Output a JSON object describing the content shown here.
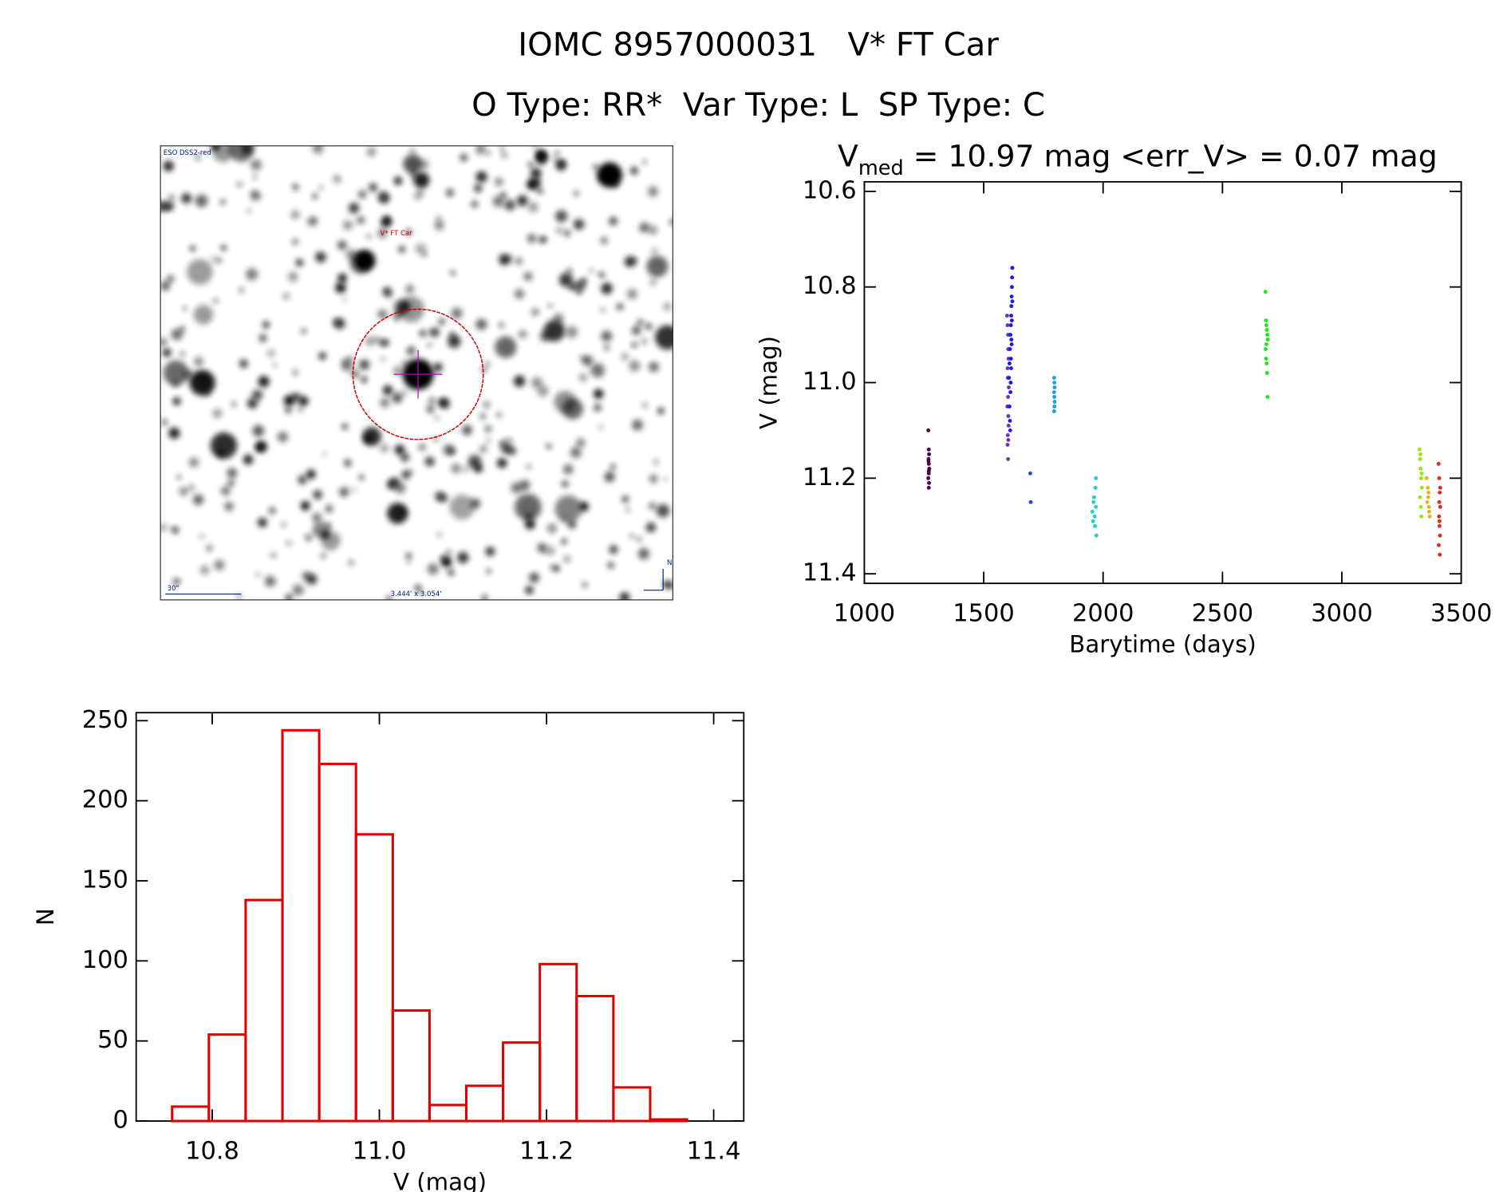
{
  "header": {
    "title": "IOMC 8957000031   V* FT Car",
    "subtitle": "O Type: RR*  Var Type: L  SP Type: C"
  },
  "image": {
    "source": "ESO DSS2-red",
    "target": "V* FT Car",
    "scale": "30\"",
    "fov": "3.444' x 3.054'",
    "north": "N"
  },
  "chart_data": [
    {
      "type": "scatter",
      "title": {
        "text": "V",
        "subscript": "med",
        "rest": " = 10.97 mag <err_V> = 0.07 mag"
      },
      "x_label": "Barytime (days)",
      "y_label": "V (mag)",
      "xlim": [
        1000,
        3500
      ],
      "xticks": [
        1000,
        1500,
        2000,
        2500,
        3000,
        3500
      ],
      "ylim": [
        11.42,
        10.58
      ],
      "yticks": [
        10.6,
        10.8,
        {
          "value": 11,
          "label": "11.0"
        },
        11.2,
        11.4
      ],
      "series": [
        {
          "color": "#4b004b",
          "x": [
            1268,
            1270,
            1271,
            1269,
            1270,
            1272,
            1270,
            1268,
            1271,
            1270,
            1269,
            1270
          ],
          "values": [
            11.1,
            11.14,
            11.15,
            11.16,
            11.17,
            11.18,
            11.19,
            11.2,
            11.21,
            11.22,
            11.165,
            11.185
          ]
        },
        {
          "color": "#7030c0",
          "x": [
            1598,
            1600,
            1602,
            1603,
            1604,
            1600,
            1601,
            1605,
            1602,
            1599,
            1603,
            1604,
            1601,
            1600,
            1602,
            1603
          ],
          "values": [
            10.86,
            10.88,
            10.9,
            10.93,
            10.95,
            10.97,
            10.99,
            11.01,
            11.03,
            11.05,
            11.07,
            11.09,
            11.11,
            11.13,
            11.16,
            11.12
          ]
        },
        {
          "color": "#1a1ae6",
          "x": [
            1606,
            1608,
            1610,
            1612,
            1614,
            1615,
            1616,
            1617,
            1618,
            1619,
            1620,
            1608,
            1610,
            1612,
            1614,
            1616,
            1618,
            1620,
            1611,
            1613,
            1615,
            1617
          ],
          "values": [
            10.99,
            10.96,
            10.93,
            10.9,
            10.88,
            10.86,
            10.84,
            10.82,
            10.8,
            10.78,
            10.76,
            11.05,
            11.08,
            11.02,
            10.95,
            10.91,
            10.87,
            10.83,
            11.1,
            11.0,
            10.97,
            10.92
          ]
        },
        {
          "color": "#1a4ee6",
          "x": [
            1695,
            1697
          ],
          "values": [
            11.19,
            11.25
          ]
        },
        {
          "color": "#1aa0e6",
          "x": [
            1795,
            1796,
            1797,
            1795,
            1796,
            1797,
            1796,
            1795
          ],
          "values": [
            10.99,
            11.0,
            11.01,
            11.02,
            11.03,
            11.04,
            11.05,
            11.06
          ]
        },
        {
          "color": "#1ad2c8",
          "x": [
            1955,
            1960,
            1965,
            1968,
            1970,
            1972,
            1958,
            1962,
            1966,
            1970
          ],
          "values": [
            11.27,
            11.25,
            11.28,
            11.22,
            11.2,
            11.32,
            11.29,
            11.24,
            11.3,
            11.26
          ]
        },
        {
          "color": "#1ee61e",
          "x": [
            2680,
            2682,
            2684,
            2686,
            2688,
            2690,
            2681,
            2683,
            2685,
            2687,
            2689,
            2684
          ],
          "values": [
            10.81,
            10.87,
            10.88,
            10.89,
            10.9,
            10.91,
            10.93,
            10.95,
            10.96,
            10.98,
            11.03,
            10.92
          ]
        },
        {
          "color": "#96e61e",
          "x": [
            3325,
            3328,
            3330,
            3332,
            3335,
            3327,
            3331,
            3333,
            3329,
            3334
          ],
          "values": [
            11.14,
            11.16,
            11.18,
            11.2,
            11.22,
            11.24,
            11.26,
            11.28,
            11.15,
            11.19
          ]
        },
        {
          "color": "#e6b41e",
          "x": [
            3355,
            3360,
            3362,
            3365,
            3368,
            3358,
            3363,
            3366
          ],
          "values": [
            11.2,
            11.22,
            11.24,
            11.26,
            11.28,
            11.25,
            11.23,
            11.27
          ]
        },
        {
          "color": "#e6281e",
          "x": [
            3405,
            3408,
            3410,
            3412,
            3407,
            3409,
            3411,
            3406,
            3410,
            3408,
            3412,
            3409
          ],
          "values": [
            11.17,
            11.2,
            11.23,
            11.26,
            11.28,
            11.3,
            11.32,
            11.34,
            11.36,
            11.25,
            11.22,
            11.29
          ]
        }
      ]
    },
    {
      "type": "histogram",
      "color": "#e00000",
      "x_label": "V (mag)",
      "y_label": "N",
      "bins": [
        10.752,
        10.796,
        10.84,
        10.884,
        10.928,
        10.972,
        11.016,
        11.06,
        11.104,
        11.148,
        11.192,
        11.236,
        11.28,
        11.324,
        11.368
      ],
      "values": [
        9,
        54,
        138,
        244,
        223,
        179,
        69,
        10,
        22,
        49,
        98,
        78,
        21,
        1
      ],
      "xlim": [
        10.709,
        11.436
      ],
      "xticks": [
        10.8,
        {
          "value": 11,
          "label": "11.0"
        },
        11.2,
        11.4
      ],
      "ylim": [
        0,
        255
      ],
      "yticks": [
        0,
        50,
        100,
        150,
        200,
        250
      ]
    }
  ]
}
